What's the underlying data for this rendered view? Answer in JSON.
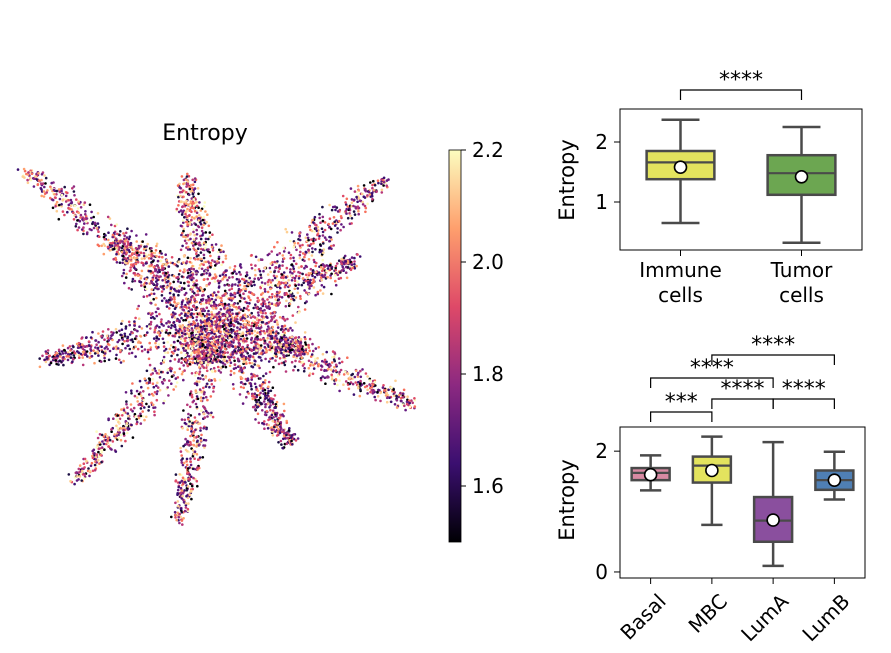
{
  "chart_data": [
    {
      "type": "scatter",
      "title": "Entropy",
      "description_of_marks": "2D embedding of cells colored by entropy (magma colormap); star-shaped point cloud with several arms",
      "colorbar": {
        "ticks": [
          1.6,
          1.8,
          2.0,
          2.2
        ],
        "tick_labels": [
          "1.6",
          "1.8",
          "2.0",
          "2.2"
        ],
        "range": [
          1.5,
          2.2
        ],
        "colormap_stops": [
          "#000004",
          "#3b0f70",
          "#8c2981",
          "#de4968",
          "#fe9f6d",
          "#fcfdbf"
        ]
      }
    },
    {
      "type": "box",
      "ylabel": "Entropy",
      "y_ticks": [
        1,
        2
      ],
      "ylim": [
        0.2,
        2.55
      ],
      "categories": [
        "Immune\ncells",
        "Tumor\ncells"
      ],
      "category_lines": [
        [
          "Immune",
          "cells"
        ],
        [
          "Tumor",
          "cells"
        ]
      ],
      "boxes": [
        {
          "name": "Immune cells",
          "whisker_low": 0.65,
          "q1": 1.38,
          "median": 1.66,
          "q3": 1.85,
          "whisker_high": 2.37,
          "mean": 1.58,
          "color": "#e3e35e"
        },
        {
          "name": "Tumor cells",
          "whisker_low": 0.32,
          "q1": 1.12,
          "median": 1.48,
          "q3": 1.78,
          "whisker_high": 2.25,
          "mean": 1.42,
          "color": "#6ca651"
        }
      ],
      "significance": [
        {
          "from": 0,
          "to": 1,
          "label": "****"
        }
      ]
    },
    {
      "type": "box",
      "ylabel": "Entropy",
      "y_ticks": [
        0,
        2
      ],
      "ylim": [
        -0.1,
        2.4
      ],
      "categories": [
        "Basal",
        "MBC",
        "LumA",
        "LumB"
      ],
      "boxes": [
        {
          "name": "Basal",
          "whisker_low": 1.35,
          "q1": 1.52,
          "median": 1.64,
          "q3": 1.72,
          "whisker_high": 1.93,
          "mean": 1.61,
          "color": "#d98aa3"
        },
        {
          "name": "MBC",
          "whisker_low": 0.78,
          "q1": 1.48,
          "median": 1.76,
          "q3": 1.91,
          "whisker_high": 2.24,
          "mean": 1.68,
          "color": "#e3e35e"
        },
        {
          "name": "LumA",
          "whisker_low": 0.1,
          "q1": 0.5,
          "median": 0.85,
          "q3": 1.24,
          "whisker_high": 2.15,
          "mean": 0.86,
          "color": "#8a4f9e"
        },
        {
          "name": "LumB",
          "whisker_low": 1.2,
          "q1": 1.36,
          "median": 1.52,
          "q3": 1.68,
          "whisker_high": 1.99,
          "mean": 1.52,
          "color": "#4f7fb4"
        }
      ],
      "significance": [
        {
          "from": 0,
          "to": 1,
          "label": "***"
        },
        {
          "from": 0,
          "to": 2,
          "label": "****"
        },
        {
          "from": 1,
          "to": 2,
          "label": "****"
        },
        {
          "from": 2,
          "to": 3,
          "label": "****"
        },
        {
          "from": 1,
          "to": 3,
          "label": "****"
        }
      ]
    }
  ]
}
